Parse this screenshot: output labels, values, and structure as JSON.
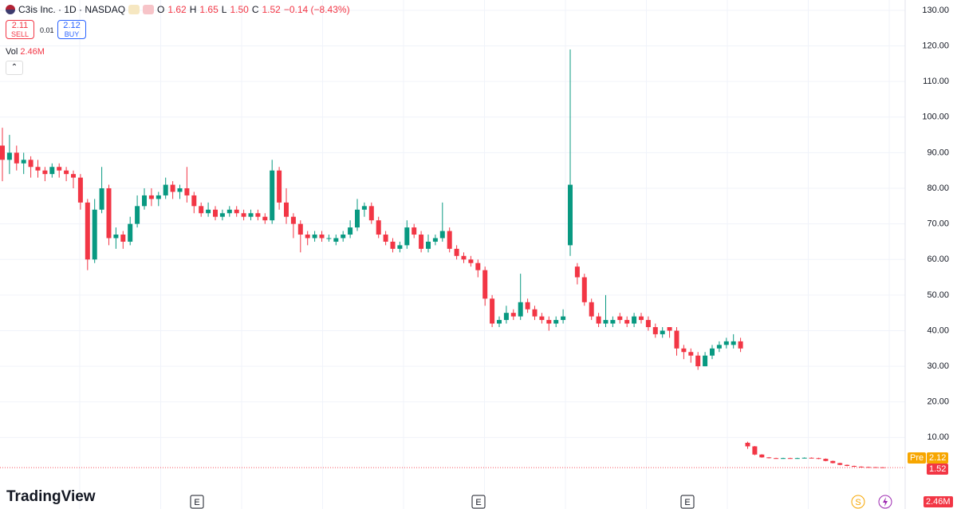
{
  "header": {
    "symbol": "C3is Inc. · 1D · NASDAQ",
    "ohlc": [
      {
        "key": "O",
        "value": "1.62"
      },
      {
        "key": "H",
        "value": "1.65"
      },
      {
        "key": "L",
        "value": "1.50"
      },
      {
        "key": "C",
        "value": "1.52"
      }
    ],
    "change": "−0.14 (−8.43%)"
  },
  "trade": {
    "sell_price": "2.11",
    "sell": "SELL",
    "spread": "0.01",
    "buy_price": "2.12",
    "buy": "BUY"
  },
  "volume_legend": {
    "label": "Vol",
    "value": "2.46M"
  },
  "price_tags": {
    "pre_label": "Pre",
    "pre_price": "2.12",
    "last_price": "1.52",
    "volume": "2.46M"
  },
  "events": [
    "E",
    "E",
    "E",
    "S"
  ],
  "logo": "TradingView",
  "chart_data": {
    "type": "candlestick",
    "up_color": "#089981",
    "down_color": "#f23645",
    "ylim": [
      -10.1,
      132.9
    ],
    "yticks": [
      {
        "value": 10,
        "label": "10.00"
      },
      {
        "value": 20,
        "label": "20.00"
      },
      {
        "value": 30,
        "label": "30.00"
      },
      {
        "value": 40,
        "label": "40.00"
      },
      {
        "value": 50,
        "label": "50.00"
      },
      {
        "value": 60,
        "label": "60.00"
      },
      {
        "value": 70,
        "label": "70.00"
      },
      {
        "value": 80,
        "label": "80.00"
      },
      {
        "value": 90,
        "label": "90.00"
      },
      {
        "value": 100,
        "label": "100.00"
      },
      {
        "value": 110,
        "label": "110.00"
      },
      {
        "value": 120,
        "label": "120.00"
      },
      {
        "value": 130,
        "label": "130.00"
      }
    ],
    "candles": [
      [
        92,
        97,
        82,
        88
      ],
      [
        88,
        95,
        84,
        90
      ],
      [
        90,
        92,
        85,
        87
      ],
      [
        87,
        90,
        84,
        88
      ],
      [
        88,
        89,
        83,
        86
      ],
      [
        86,
        88,
        83,
        85
      ],
      [
        85,
        86,
        82,
        84
      ],
      [
        84,
        87,
        83,
        86
      ],
      [
        86,
        87,
        83,
        85
      ],
      [
        85,
        86,
        82,
        84
      ],
      [
        84,
        85,
        80,
        83
      ],
      [
        83,
        84,
        74,
        76
      ],
      [
        76,
        77,
        57,
        60
      ],
      [
        60,
        77,
        59,
        74
      ],
      [
        74,
        86,
        73,
        80
      ],
      [
        80,
        81,
        64,
        66
      ],
      [
        66,
        69,
        63,
        67
      ],
      [
        67,
        68,
        63,
        65
      ],
      [
        65,
        72,
        64,
        70
      ],
      [
        70,
        78,
        69,
        75
      ],
      [
        75,
        80,
        74,
        78
      ],
      [
        78,
        80,
        75,
        77
      ],
      [
        77,
        79,
        75,
        78
      ],
      [
        78,
        83,
        77,
        81
      ],
      [
        81,
        82,
        77,
        79
      ],
      [
        79,
        81,
        77,
        80
      ],
      [
        80,
        86,
        76,
        78
      ],
      [
        78,
        79,
        73,
        75
      ],
      [
        75,
        76,
        72,
        73
      ],
      [
        73,
        76,
        72,
        74
      ],
      [
        74,
        75,
        71,
        72
      ],
      [
        72,
        74,
        71,
        73
      ],
      [
        73,
        75,
        72,
        74
      ],
      [
        74,
        75,
        72,
        73
      ],
      [
        73,
        74,
        71,
        72
      ],
      [
        72,
        74,
        71,
        73
      ],
      [
        73,
        74,
        71,
        72
      ],
      [
        72,
        73,
        70,
        71
      ],
      [
        71,
        88,
        70,
        85
      ],
      [
        85,
        86,
        74,
        76
      ],
      [
        76,
        80,
        70,
        72
      ],
      [
        72,
        73,
        66,
        70
      ],
      [
        70,
        71,
        62,
        67
      ],
      [
        67,
        68,
        64,
        66
      ],
      [
        66,
        68,
        65,
        67
      ],
      [
        67,
        68,
        65,
        66
      ],
      [
        66,
        67,
        65,
        66
      ],
      [
        65,
        67,
        64,
        66
      ],
      [
        66,
        68,
        65,
        67
      ],
      [
        67,
        71,
        66,
        69
      ],
      [
        69,
        77,
        68,
        74
      ],
      [
        74,
        76,
        72,
        75
      ],
      [
        75,
        76,
        70,
        71
      ],
      [
        71,
        72,
        66,
        67
      ],
      [
        67,
        68,
        64,
        65
      ],
      [
        65,
        66,
        62,
        63
      ],
      [
        63,
        65,
        62,
        64
      ],
      [
        64,
        71,
        63,
        69
      ],
      [
        69,
        70,
        66,
        67
      ],
      [
        67,
        68,
        62,
        63
      ],
      [
        63,
        67,
        62,
        65
      ],
      [
        65,
        67,
        64,
        66
      ],
      [
        66,
        76,
        65,
        68
      ],
      [
        68,
        69,
        62,
        63
      ],
      [
        63,
        64,
        60,
        61
      ],
      [
        61,
        62,
        59,
        60
      ],
      [
        60,
        61,
        58,
        59
      ],
      [
        59,
        60,
        55,
        57
      ],
      [
        57,
        58,
        47,
        49
      ],
      [
        49,
        50,
        41,
        42
      ],
      [
        42,
        44,
        41,
        43
      ],
      [
        43,
        47,
        42,
        45
      ],
      [
        45,
        46,
        43,
        44
      ],
      [
        44,
        56,
        43,
        48
      ],
      [
        48,
        49,
        45,
        46
      ],
      [
        46,
        47,
        43,
        44
      ],
      [
        44,
        45,
        42,
        43
      ],
      [
        43,
        44,
        40,
        42
      ],
      [
        42,
        44,
        41,
        43
      ],
      [
        43,
        46,
        42,
        44
      ],
      [
        64,
        119,
        61,
        81
      ],
      [
        58,
        59,
        53,
        55
      ],
      [
        55,
        56,
        47,
        48
      ],
      [
        48,
        49,
        43,
        44
      ],
      [
        44,
        45,
        41,
        42
      ],
      [
        42,
        50,
        41,
        43
      ],
      [
        42,
        44,
        41,
        43
      ],
      [
        44,
        45,
        42,
        43
      ],
      [
        43,
        44,
        41,
        42
      ],
      [
        42,
        45,
        41,
        44
      ],
      [
        44,
        45,
        42,
        43
      ],
      [
        43,
        44,
        40,
        41
      ],
      [
        41,
        42,
        38,
        39
      ],
      [
        39,
        41,
        38,
        40
      ],
      [
        41,
        41,
        38,
        40
      ],
      [
        40,
        41,
        33,
        35
      ],
      [
        35,
        36,
        32,
        34
      ],
      [
        34,
        35,
        31,
        33
      ],
      [
        33,
        34,
        29,
        30
      ],
      [
        30,
        34,
        30,
        33
      ],
      [
        33,
        36,
        32,
        35
      ],
      [
        35,
        37,
        34,
        36
      ],
      [
        36,
        38,
        35,
        37
      ],
      [
        36,
        39,
        35,
        37
      ],
      [
        37,
        38,
        34,
        35
      ],
      [
        8.5,
        8.8,
        6.8,
        7.5
      ],
      [
        7.5,
        7.6,
        5,
        5.2
      ],
      [
        5.2,
        5.3,
        4.3,
        4.4
      ],
      [
        4.4,
        4.5,
        4.1,
        4.2
      ],
      [
        4.2,
        4.3,
        4,
        4.1
      ],
      [
        4.1,
        4.3,
        4,
        4.2
      ],
      [
        4.2,
        4.3,
        4,
        4.1
      ],
      [
        4.1,
        4.3,
        4,
        4.2
      ],
      [
        4.2,
        4.4,
        4.1,
        4.3
      ],
      [
        4.3,
        4.4,
        4.1,
        4.2
      ],
      [
        4.2,
        4.3,
        3.9,
        4
      ],
      [
        4,
        4.1,
        3.3,
        3.4
      ],
      [
        3.4,
        3.5,
        2.7,
        2.8
      ],
      [
        2.8,
        2.9,
        2.2,
        2.3
      ],
      [
        2.3,
        2.4,
        1.9,
        2
      ],
      [
        2,
        2.1,
        1.7,
        1.8
      ],
      [
        1.8,
        1.9,
        1.6,
        1.7
      ],
      [
        1.7,
        1.8,
        1.6,
        1.66
      ],
      [
        1.66,
        1.7,
        1.6,
        1.62
      ],
      [
        1.62,
        1.65,
        1.5,
        1.52
      ]
    ]
  }
}
